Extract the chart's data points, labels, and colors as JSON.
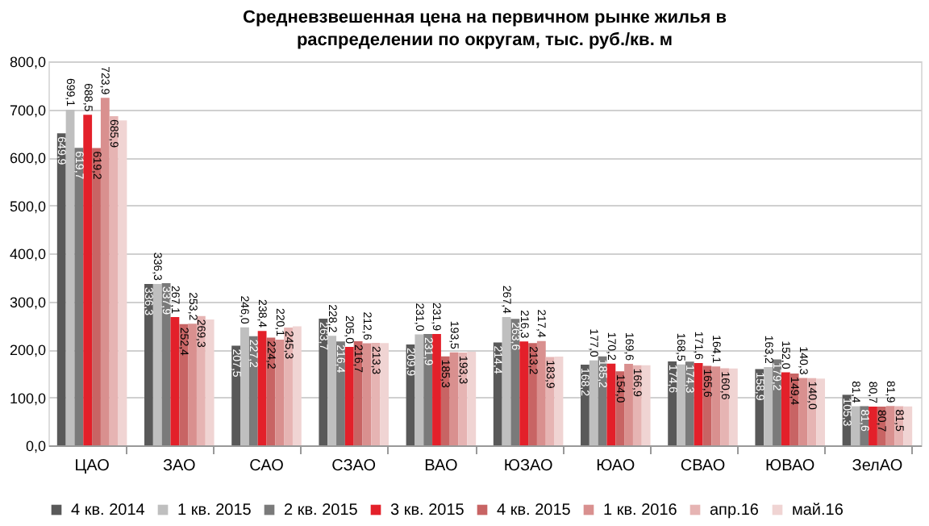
{
  "chart_data": {
    "type": "bar",
    "title": "Средневзвешенная цена на первичном рынке жилья в распределении по округам, тыс. руб./кв. м",
    "categories": [
      "ЦАО",
      "ЗАО",
      "САО",
      "СЗАО",
      "ВАО",
      "ЮЗАО",
      "ЮАО",
      "СВАО",
      "ЮВАО",
      "ЗелАО"
    ],
    "series": [
      {
        "name": "4 кв. 2014",
        "color": "#595959",
        "values": [
          649.9,
          336.3,
          207.5,
          263.7,
          209.9,
          214.4,
          168.2,
          174.6,
          158.9,
          105.3
        ],
        "value_labels": [
          "649,9",
          "336,3",
          "207,5",
          "263,7",
          "209,9",
          "214,4",
          "168,2",
          "174,6",
          "158,9",
          "105,3"
        ]
      },
      {
        "name": "1 кв. 2015",
        "color": "#bfbfbf",
        "values": [
          699.1,
          336.3,
          246.0,
          228.2,
          231.0,
          267.4,
          177.0,
          168.5,
          163.2,
          81.4
        ],
        "value_labels": [
          "699,1",
          "336,3",
          "246,0",
          "228,2",
          "231,0",
          "267,4",
          "177,0",
          "168,5",
          "163,2",
          "81,4"
        ]
      },
      {
        "name": "2 кв. 2015",
        "color": "#7a7a7a",
        "values": [
          619.7,
          337.9,
          227.2,
          216.4,
          231.9,
          263.6,
          185.2,
          174.3,
          179.2,
          81.6
        ],
        "value_labels": [
          "619,7",
          "337,9",
          "227,2",
          "216,4",
          "231,9",
          "263,6",
          "185,2",
          "174,3",
          "179,2",
          "81,6"
        ]
      },
      {
        "name": "3 кв. 2015",
        "color": "#e3202a",
        "values": [
          688.5,
          267.1,
          238.4,
          205.0,
          231.9,
          216.3,
          170.2,
          171.6,
          152.0,
          80.7
        ],
        "value_labels": [
          "688,5",
          "267,1",
          "238,4",
          "205,0",
          "231,9",
          "216,3",
          "170,2",
          "171,6",
          "152,0",
          "80,7"
        ]
      },
      {
        "name": "4 кв. 2015",
        "color": "#c86464",
        "values": [
          619.2,
          252.4,
          224.2,
          216.7,
          185.3,
          213.2,
          154.0,
          165.6,
          149.4,
          80.7
        ],
        "value_labels": [
          "619,2",
          "252,4",
          "224,2",
          "216,7",
          "185,3",
          "213,2",
          "154,0",
          "165,6",
          "149,4",
          "80,7"
        ]
      },
      {
        "name": "1 кв. 2016",
        "color": "#d9908f",
        "values": [
          723.9,
          253.2,
          220.1,
          212.6,
          193.5,
          217.4,
          169.6,
          164.1,
          140.3,
          81.9
        ],
        "value_labels": [
          "723,9",
          "253,2",
          "220,1",
          "212,6",
          "193,5",
          "217,4",
          "169,6",
          "164,1",
          "140,3",
          "81,9"
        ]
      },
      {
        "name": "апр.16",
        "color": "#e6b4b3",
        "values": [
          685.9,
          269.3,
          245.3,
          213.3,
          193.3,
          183.9,
          166.9,
          160.6,
          140.0,
          81.5
        ],
        "value_labels": [
          "685,9",
          "269,3",
          "245,3",
          "213,3",
          "193,3",
          "183,9",
          "166,9",
          "160,6",
          "140,0",
          "81,5"
        ]
      },
      {
        "name": "май.16",
        "color": "#f0d4d3",
        "values": [
          677.0,
          262.0,
          248.0,
          213.0,
          195.0,
          185.0,
          167.0,
          160.0,
          139.0,
          81.0
        ]
      }
    ],
    "ylim": [
      0,
      800
    ],
    "yticks": [
      {
        "value": 0,
        "label": "0,0"
      },
      {
        "value": 100,
        "label": "100,0"
      },
      {
        "value": 200,
        "label": "200,0"
      },
      {
        "value": 300,
        "label": "300,0"
      },
      {
        "value": 400,
        "label": "400,0"
      },
      {
        "value": 500,
        "label": "500,0"
      },
      {
        "value": 600,
        "label": "600,0"
      },
      {
        "value": 700,
        "label": "700,0"
      },
      {
        "value": 800,
        "label": "800,0"
      }
    ],
    "grid": "y",
    "legend": "bottom"
  }
}
